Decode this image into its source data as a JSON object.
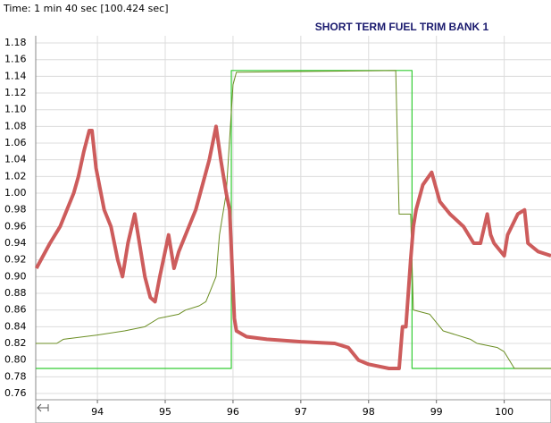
{
  "chart_data": {
    "type": "line",
    "title": "SHORT TERM FUEL TRIM BANK 1",
    "subtitle": "Time: 1 min 40 sec [100.424 sec]",
    "xlim": [
      93.09,
      100.69
    ],
    "ylim": [
      0.7525,
      1.1886
    ],
    "xticks": [
      94,
      95,
      96,
      97,
      98,
      99,
      100
    ],
    "yticks": [
      0.76,
      0.78,
      {
        "value": 0.8,
        "label": "0.80"
      },
      0.82,
      0.84,
      0.86,
      0.88,
      {
        "value": 0.9,
        "label": "0.90"
      },
      0.92,
      0.94,
      0.96,
      0.98,
      {
        "value": 1.0,
        "label": "1.00"
      },
      1.02,
      1.04,
      1.06,
      1.08,
      {
        "value": 1.1,
        "label": "1.10"
      },
      1.12,
      1.14,
      1.16,
      1.18
    ],
    "grid": true,
    "series": [
      {
        "color": "#33cc33",
        "width": 1.2,
        "x": [
          93.09,
          95.975,
          95.975,
          98.64,
          98.64,
          100.69
        ],
        "values": [
          0.79,
          0.79,
          1.147,
          1.147,
          0.79,
          0.79
        ]
      },
      {
        "color": "#6b8e23",
        "width": 1,
        "x": [
          93.09,
          93.4,
          93.5,
          94.0,
          94.4,
          94.7,
          94.9,
          95.2,
          95.3,
          95.5,
          95.6,
          95.65,
          95.75,
          95.8,
          95.88,
          95.9,
          96.0,
          96.05,
          98.4,
          98.45,
          98.62,
          98.66,
          98.9,
          99.1,
          99.5,
          99.6,
          99.9,
          100.0,
          100.15,
          100.69
        ],
        "values": [
          0.82,
          0.82,
          0.825,
          0.83,
          0.835,
          0.84,
          0.85,
          0.855,
          0.86,
          0.865,
          0.87,
          0.88,
          0.9,
          0.95,
          0.99,
          1.0,
          1.13,
          1.145,
          1.147,
          0.975,
          0.975,
          0.86,
          0.855,
          0.835,
          0.825,
          0.82,
          0.815,
          0.81,
          0.79,
          0.79
        ]
      },
      {
        "color": "#cd5c5c",
        "width": 4,
        "x": [
          93.1,
          93.3,
          93.45,
          93.55,
          93.65,
          93.72,
          93.8,
          93.88,
          93.92,
          93.98,
          94.1,
          94.2,
          94.3,
          94.37,
          94.45,
          94.55,
          94.62,
          94.7,
          94.78,
          94.85,
          94.92,
          95.05,
          95.13,
          95.2,
          95.45,
          95.65,
          95.75,
          95.82,
          95.9,
          95.95,
          96.02,
          96.05,
          96.2,
          96.5,
          97.0,
          97.5,
          97.7,
          97.85,
          98.0,
          98.3,
          98.45,
          98.5,
          98.55,
          98.62,
          98.66,
          98.7,
          98.8,
          98.93,
          99.05,
          99.2,
          99.4,
          99.55,
          99.65,
          99.75,
          99.8,
          99.85,
          100.0,
          100.05,
          100.2,
          100.3,
          100.35,
          100.5,
          100.69
        ],
        "values": [
          0.91,
          0.94,
          0.96,
          0.98,
          1.0,
          1.02,
          1.05,
          1.075,
          1.075,
          1.03,
          0.98,
          0.96,
          0.92,
          0.9,
          0.94,
          0.975,
          0.94,
          0.9,
          0.875,
          0.87,
          0.9,
          0.95,
          0.91,
          0.93,
          0.98,
          1.04,
          1.08,
          1.04,
          1.0,
          0.98,
          0.85,
          0.835,
          0.828,
          0.825,
          0.822,
          0.82,
          0.815,
          0.8,
          0.795,
          0.79,
          0.79,
          0.84,
          0.84,
          0.92,
          0.96,
          0.98,
          1.01,
          1.025,
          0.99,
          0.975,
          0.96,
          0.94,
          0.94,
          0.975,
          0.95,
          0.94,
          0.925,
          0.95,
          0.975,
          0.98,
          0.94,
          0.93,
          0.925
        ]
      }
    ]
  }
}
